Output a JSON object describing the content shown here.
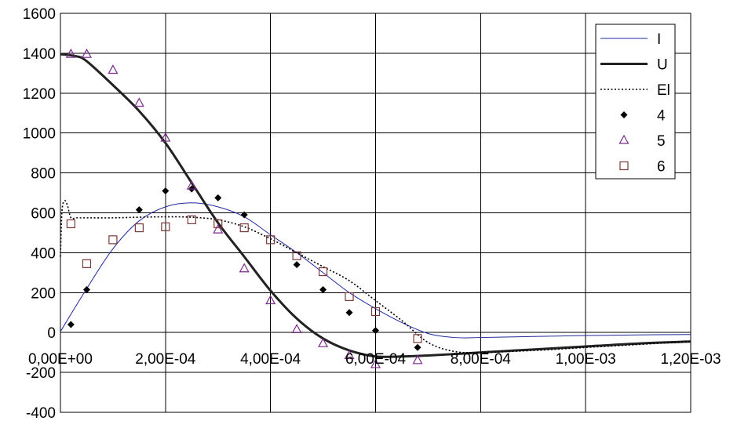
{
  "chart_data": {
    "type": "scatter",
    "title": "",
    "xlabel": "",
    "ylabel": "",
    "xlim": [
      0,
      0.0012
    ],
    "ylim": [
      -400,
      1600
    ],
    "grid": true,
    "legend_position": "top-right",
    "x_ticks": [
      {
        "value": 0,
        "label": "0,00E+00"
      },
      {
        "value": 0.0002,
        "label": "2,00E-04"
      },
      {
        "value": 0.0004,
        "label": "4,00E-04"
      },
      {
        "value": 0.0006,
        "label": "6,00E-04"
      },
      {
        "value": 0.0008,
        "label": "8,00E-04"
      },
      {
        "value": 0.001,
        "label": "1,00E-03"
      },
      {
        "value": 0.0012,
        "label": "1,20E-03"
      }
    ],
    "y_ticks": [
      {
        "value": 1600,
        "label": "1600"
      },
      {
        "value": 1400,
        "label": "1400"
      },
      {
        "value": 1200,
        "label": "1200"
      },
      {
        "value": 1000,
        "label": "1000"
      },
      {
        "value": 800,
        "label": "800"
      },
      {
        "value": 600,
        "label": "600"
      },
      {
        "value": 400,
        "label": "400"
      },
      {
        "value": 200,
        "label": "200"
      },
      {
        "value": 0,
        "label": "0"
      },
      {
        "value": -200,
        "label": "-200"
      },
      {
        "value": -400,
        "label": "-400"
      }
    ],
    "series": [
      {
        "name": "I",
        "kind": "line",
        "style": "thin",
        "color": "#1f2a9c",
        "x": [
          0,
          5e-05,
          0.0001,
          0.00015,
          0.0002,
          0.00025,
          0.0003,
          0.00035,
          0.0004,
          0.00045,
          0.0005,
          0.00055,
          0.0006,
          0.00065,
          0.0007,
          0.00075,
          0.0008,
          0.0009,
          0.001,
          0.0011,
          0.0012
        ],
        "y": [
          5,
          220,
          420,
          560,
          630,
          650,
          630,
          580,
          490,
          400,
          300,
          200,
          120,
          50,
          -5,
          -25,
          -25,
          -20,
          -15,
          -12,
          -10
        ]
      },
      {
        "name": "U",
        "kind": "line",
        "style": "thick",
        "color": "#222222",
        "x": [
          0,
          3e-05,
          5e-05,
          0.0001,
          0.00015,
          0.0002,
          0.00025,
          0.0003,
          0.00035,
          0.0004,
          0.00045,
          0.0005,
          0.00055,
          0.0006,
          0.00065,
          0.0007,
          0.00075,
          0.0008,
          0.0009,
          0.001,
          0.0011,
          0.0012
        ],
        "y": [
          1395,
          1385,
          1360,
          1240,
          1110,
          950,
          750,
          550,
          380,
          210,
          70,
          -30,
          -90,
          -120,
          -120,
          -115,
          -108,
          -100,
          -85,
          -70,
          -55,
          -45
        ]
      },
      {
        "name": "El",
        "kind": "line",
        "style": "dotted",
        "color": "#000000",
        "x": [
          0,
          3e-06,
          8e-06,
          1.3e-05,
          2e-05,
          3e-05,
          5e-05,
          0.0001,
          0.00015,
          0.0002,
          0.00025,
          0.0003,
          0.00035,
          0.0004,
          0.00045,
          0.0005,
          0.00055,
          0.0006,
          0.00065,
          0.0007,
          0.00075,
          0.0008,
          0.0009,
          0.001,
          0.0011,
          0.0012
        ],
        "y": [
          380,
          610,
          660,
          640,
          575,
          575,
          575,
          575,
          578,
          580,
          578,
          565,
          530,
          470,
          400,
          330,
          260,
          160,
          60,
          -50,
          -95,
          -100,
          -90,
          -75,
          -60,
          -45
        ]
      },
      {
        "name": "4",
        "kind": "points",
        "marker": "diamond",
        "color": "#000000",
        "x": [
          2e-05,
          5e-05,
          0.00015,
          0.0002,
          0.00025,
          0.0003,
          0.00035,
          0.00045,
          0.0005,
          0.00055,
          0.0006,
          0.00068
        ],
        "y": [
          40,
          215,
          615,
          710,
          720,
          675,
          590,
          340,
          215,
          100,
          10,
          -75
        ]
      },
      {
        "name": "5",
        "kind": "points",
        "marker": "triangle",
        "color": "#7a2a8a",
        "x": [
          2e-05,
          5e-05,
          0.0001,
          0.00015,
          0.0002,
          0.00025,
          0.0003,
          0.00035,
          0.0004,
          0.00045,
          0.0005,
          0.00055,
          0.0006,
          0.00068
        ],
        "y": [
          1395,
          1395,
          1315,
          1150,
          975,
          735,
          515,
          320,
          160,
          15,
          -55,
          -115,
          -160,
          -140
        ]
      },
      {
        "name": "6",
        "kind": "points",
        "marker": "square",
        "color": "#7a3a3a",
        "x": [
          2e-05,
          5e-05,
          0.0001,
          0.00015,
          0.0002,
          0.00025,
          0.0003,
          0.00035,
          0.0004,
          0.00045,
          0.0005,
          0.00055,
          0.0006,
          0.00068
        ],
        "y": [
          545,
          345,
          465,
          525,
          530,
          565,
          545,
          525,
          465,
          385,
          305,
          180,
          105,
          -30
        ]
      }
    ]
  }
}
